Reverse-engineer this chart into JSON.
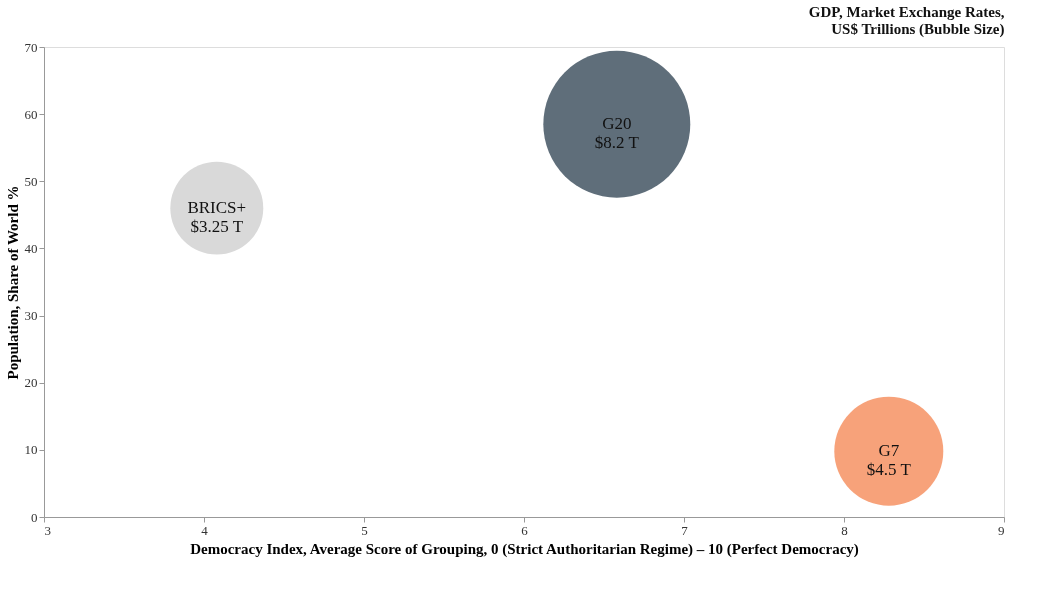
{
  "chart_data": {
    "type": "bubble",
    "title": [
      "GDP, Market Exchange Rates,",
      "US$ Trillions (Bubble Size)"
    ],
    "xlabel": "Democracy Index, Average Score of Grouping,  0 (Strict Authoritarian Regime) – 10 (Perfect Democracy)",
    "ylabel": "Population, Share of World %",
    "x": [
      4.08,
      6.58,
      8.28
    ],
    "values": [
      46,
      58.5,
      9.8
    ],
    "sizes": [
      0.4,
      1,
      0.55
    ],
    "colors": [
      "#d9d9d9",
      "#5f6e7a",
      "#f7a27a"
    ],
    "annotations": [
      {
        "text": "BRICS+\n$3.25 T",
        "x": 4.08,
        "y": 46
      },
      {
        "text": "G20\n$8.2 T",
        "x": 6.58,
        "y": 58.5
      },
      {
        "text": "G7\n$4.5 T",
        "x": 8.28,
        "y": 9.8
      }
    ],
    "xlim": [
      3,
      9
    ],
    "xticks": [
      3,
      4,
      5,
      6,
      7,
      8,
      9
    ],
    "ylim": [
      0,
      70
    ],
    "yticks": [
      0,
      10,
      20,
      30,
      40,
      50,
      60,
      70
    ],
    "grid": false,
    "legend": false
  }
}
